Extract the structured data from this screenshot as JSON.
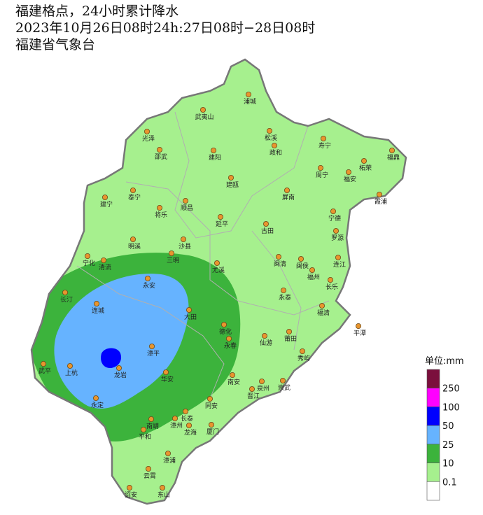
{
  "header": {
    "title": "福建格点，24小时累计降水",
    "period": "2023年10月26日08时24h:27日08时−28日08时",
    "issuer": "福建省气象台"
  },
  "cities": [
    "浦城",
    "武夷山",
    "光泽",
    "松溪",
    "政和",
    "寿宁",
    "邵武",
    "建阳",
    "周宁",
    "柘荣",
    "福鼎",
    "福安",
    "建瓯",
    "泰宁",
    "建宁",
    "将乐",
    "顺昌",
    "屏南",
    "霞浦",
    "宁德",
    "延平",
    "古田",
    "罗源",
    "明溪",
    "沙县",
    "宁化",
    "清流",
    "三明",
    "尤溪",
    "闽清",
    "连江",
    "闽侯",
    "福州",
    "长乐",
    "永安",
    "长汀",
    "永泰",
    "连城",
    "大田",
    "福清",
    "平潭",
    "德化",
    "永春",
    "仙游",
    "莆田",
    "秀屿",
    "漳平",
    "武平",
    "上杭",
    "龙岩",
    "华安",
    "南安",
    "泉州",
    "崇武",
    "晋江",
    "永定",
    "同安",
    "长泰",
    "南靖",
    "漳州",
    "龙海",
    "厦门",
    "平和",
    "漳浦",
    "云霄",
    "诏安",
    "东山"
  ],
  "legend": {
    "unit": "单位:mm",
    "labels": [
      250,
      100,
      50,
      25,
      10,
      0.1
    ],
    "colors": [
      "#7b0f3d",
      "#ff00ff",
      "#0000ff",
      "#66b3ff",
      "#3cb33c",
      "#a6f08e",
      "#ffffff"
    ]
  }
}
